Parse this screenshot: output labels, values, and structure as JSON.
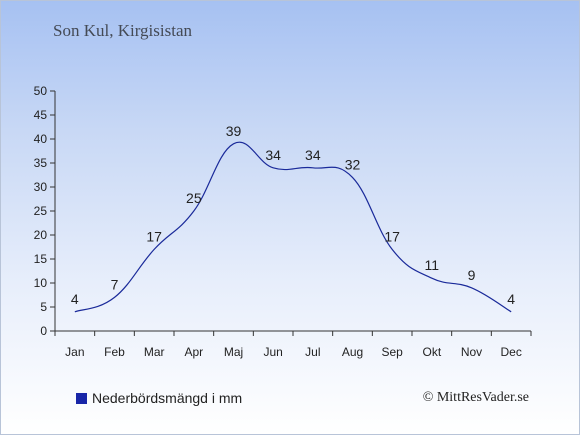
{
  "title": "Son Kul, Kirgisistan",
  "legend": {
    "label": "Nederbördsmängd i mm",
    "color": "#1826a8"
  },
  "copyright": "© MittResVader.se",
  "chart_data": {
    "type": "line",
    "title": "Son Kul, Kirgisistan",
    "categories": [
      "Jan",
      "Feb",
      "Mar",
      "Apr",
      "Maj",
      "Jun",
      "Jul",
      "Aug",
      "Sep",
      "Okt",
      "Nov",
      "Dec"
    ],
    "series": [
      {
        "name": "Nederbördsmängd i mm",
        "values": [
          4,
          7,
          17,
          25,
          39,
          34,
          34,
          32,
          17,
          11,
          9,
          4
        ]
      }
    ],
    "data_labels": [
      "4",
      "7",
      "17",
      "25",
      "39",
      "34",
      "34",
      "32",
      "17",
      "11",
      "9",
      "4"
    ],
    "ylim": [
      0,
      50
    ],
    "yticks": [
      0,
      5,
      10,
      15,
      20,
      25,
      30,
      35,
      40,
      45,
      50
    ],
    "line_color": "#1a2a9a",
    "grid": false,
    "legend_position": "bottom-left"
  }
}
